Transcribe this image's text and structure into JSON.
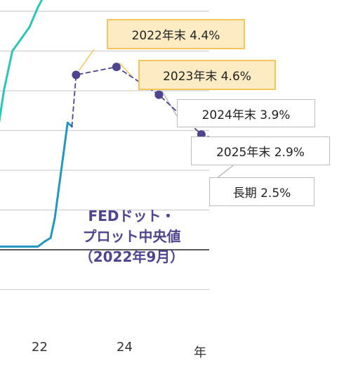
{
  "chart_data": {
    "type": "line",
    "title": "",
    "xlabel": "年",
    "ylabel": "",
    "x_ticks": [
      "22",
      "24"
    ],
    "ylim": [
      -1,
      7
    ],
    "grid": true,
    "series": [
      {
        "color": "#2ec4b6",
        "style": "solid",
        "x": [
          2020.0,
          2020.3,
          2020.6,
          2020.9,
          2021.1,
          2021.3,
          2021.5,
          2021.7,
          2021.9,
          2022.1,
          2022.3,
          2022.45,
          2022.6,
          2022.75,
          2022.9
        ],
        "y": [
          0.3,
          0.8,
          1.5,
          2.6,
          4.0,
          5.0,
          5.3,
          5.6,
          6.1,
          6.5,
          6.9,
          7.3,
          7.0,
          6.9,
          6.7
        ]
      },
      {
        "color": "#2596be",
        "style": "solid",
        "x": [
          2020.0,
          2020.5,
          2021.0,
          2021.5,
          2021.9,
          2022.05,
          2022.2,
          2022.3,
          2022.4,
          2022.5,
          2022.6,
          2022.7
        ],
        "y": [
          0.08,
          0.08,
          0.08,
          0.08,
          0.08,
          0.2,
          0.3,
          0.8,
          1.6,
          2.4,
          3.2,
          3.1
        ]
      },
      {
        "color": "#4f458f",
        "style": "dashed",
        "marker": "circle",
        "x": [
          2022.7,
          2022.8,
          2023.75,
          2024.75,
          2025.75,
          2027.0
        ],
        "y": [
          3.1,
          4.4,
          4.6,
          3.9,
          2.9,
          2.5
        ]
      }
    ],
    "annotations": [
      {
        "text": "2022年末 4.4%",
        "highlight": true
      },
      {
        "text": "2023年末 4.6%",
        "highlight": true
      },
      {
        "text": "2024年末 3.9%",
        "highlight": false
      },
      {
        "text": "2025年末 2.9%",
        "highlight": false
      },
      {
        "text": "長期 2.5%",
        "highlight": false
      }
    ],
    "median_label": [
      "FEDドット・",
      "プロット中央値",
      "（2022年9月）"
    ]
  }
}
